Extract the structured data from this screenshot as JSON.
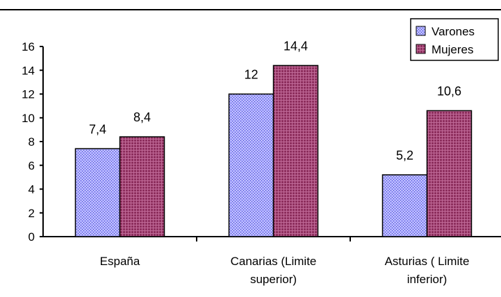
{
  "chart_data": {
    "type": "bar",
    "categories": [
      [
        "España"
      ],
      [
        "Canarias (Limite",
        "superior)"
      ],
      [
        "Asturias ( Limite",
        "inferior)"
      ]
    ],
    "series": [
      {
        "name": "Varones",
        "values": [
          7.4,
          12,
          5.2
        ],
        "labels": [
          "7,4",
          "12",
          "5,2"
        ],
        "color": "#9999ff"
      },
      {
        "name": "Mujeres",
        "values": [
          8.4,
          14.4,
          10.6
        ],
        "labels": [
          "8,4",
          "14,4",
          "10,6"
        ],
        "color": "#993366"
      }
    ],
    "ylim": [
      0,
      16
    ],
    "yticks": [
      "0",
      "2",
      "4",
      "6",
      "8",
      "10",
      "12",
      "14",
      "16"
    ],
    "legend": "top-right",
    "grid": false
  }
}
